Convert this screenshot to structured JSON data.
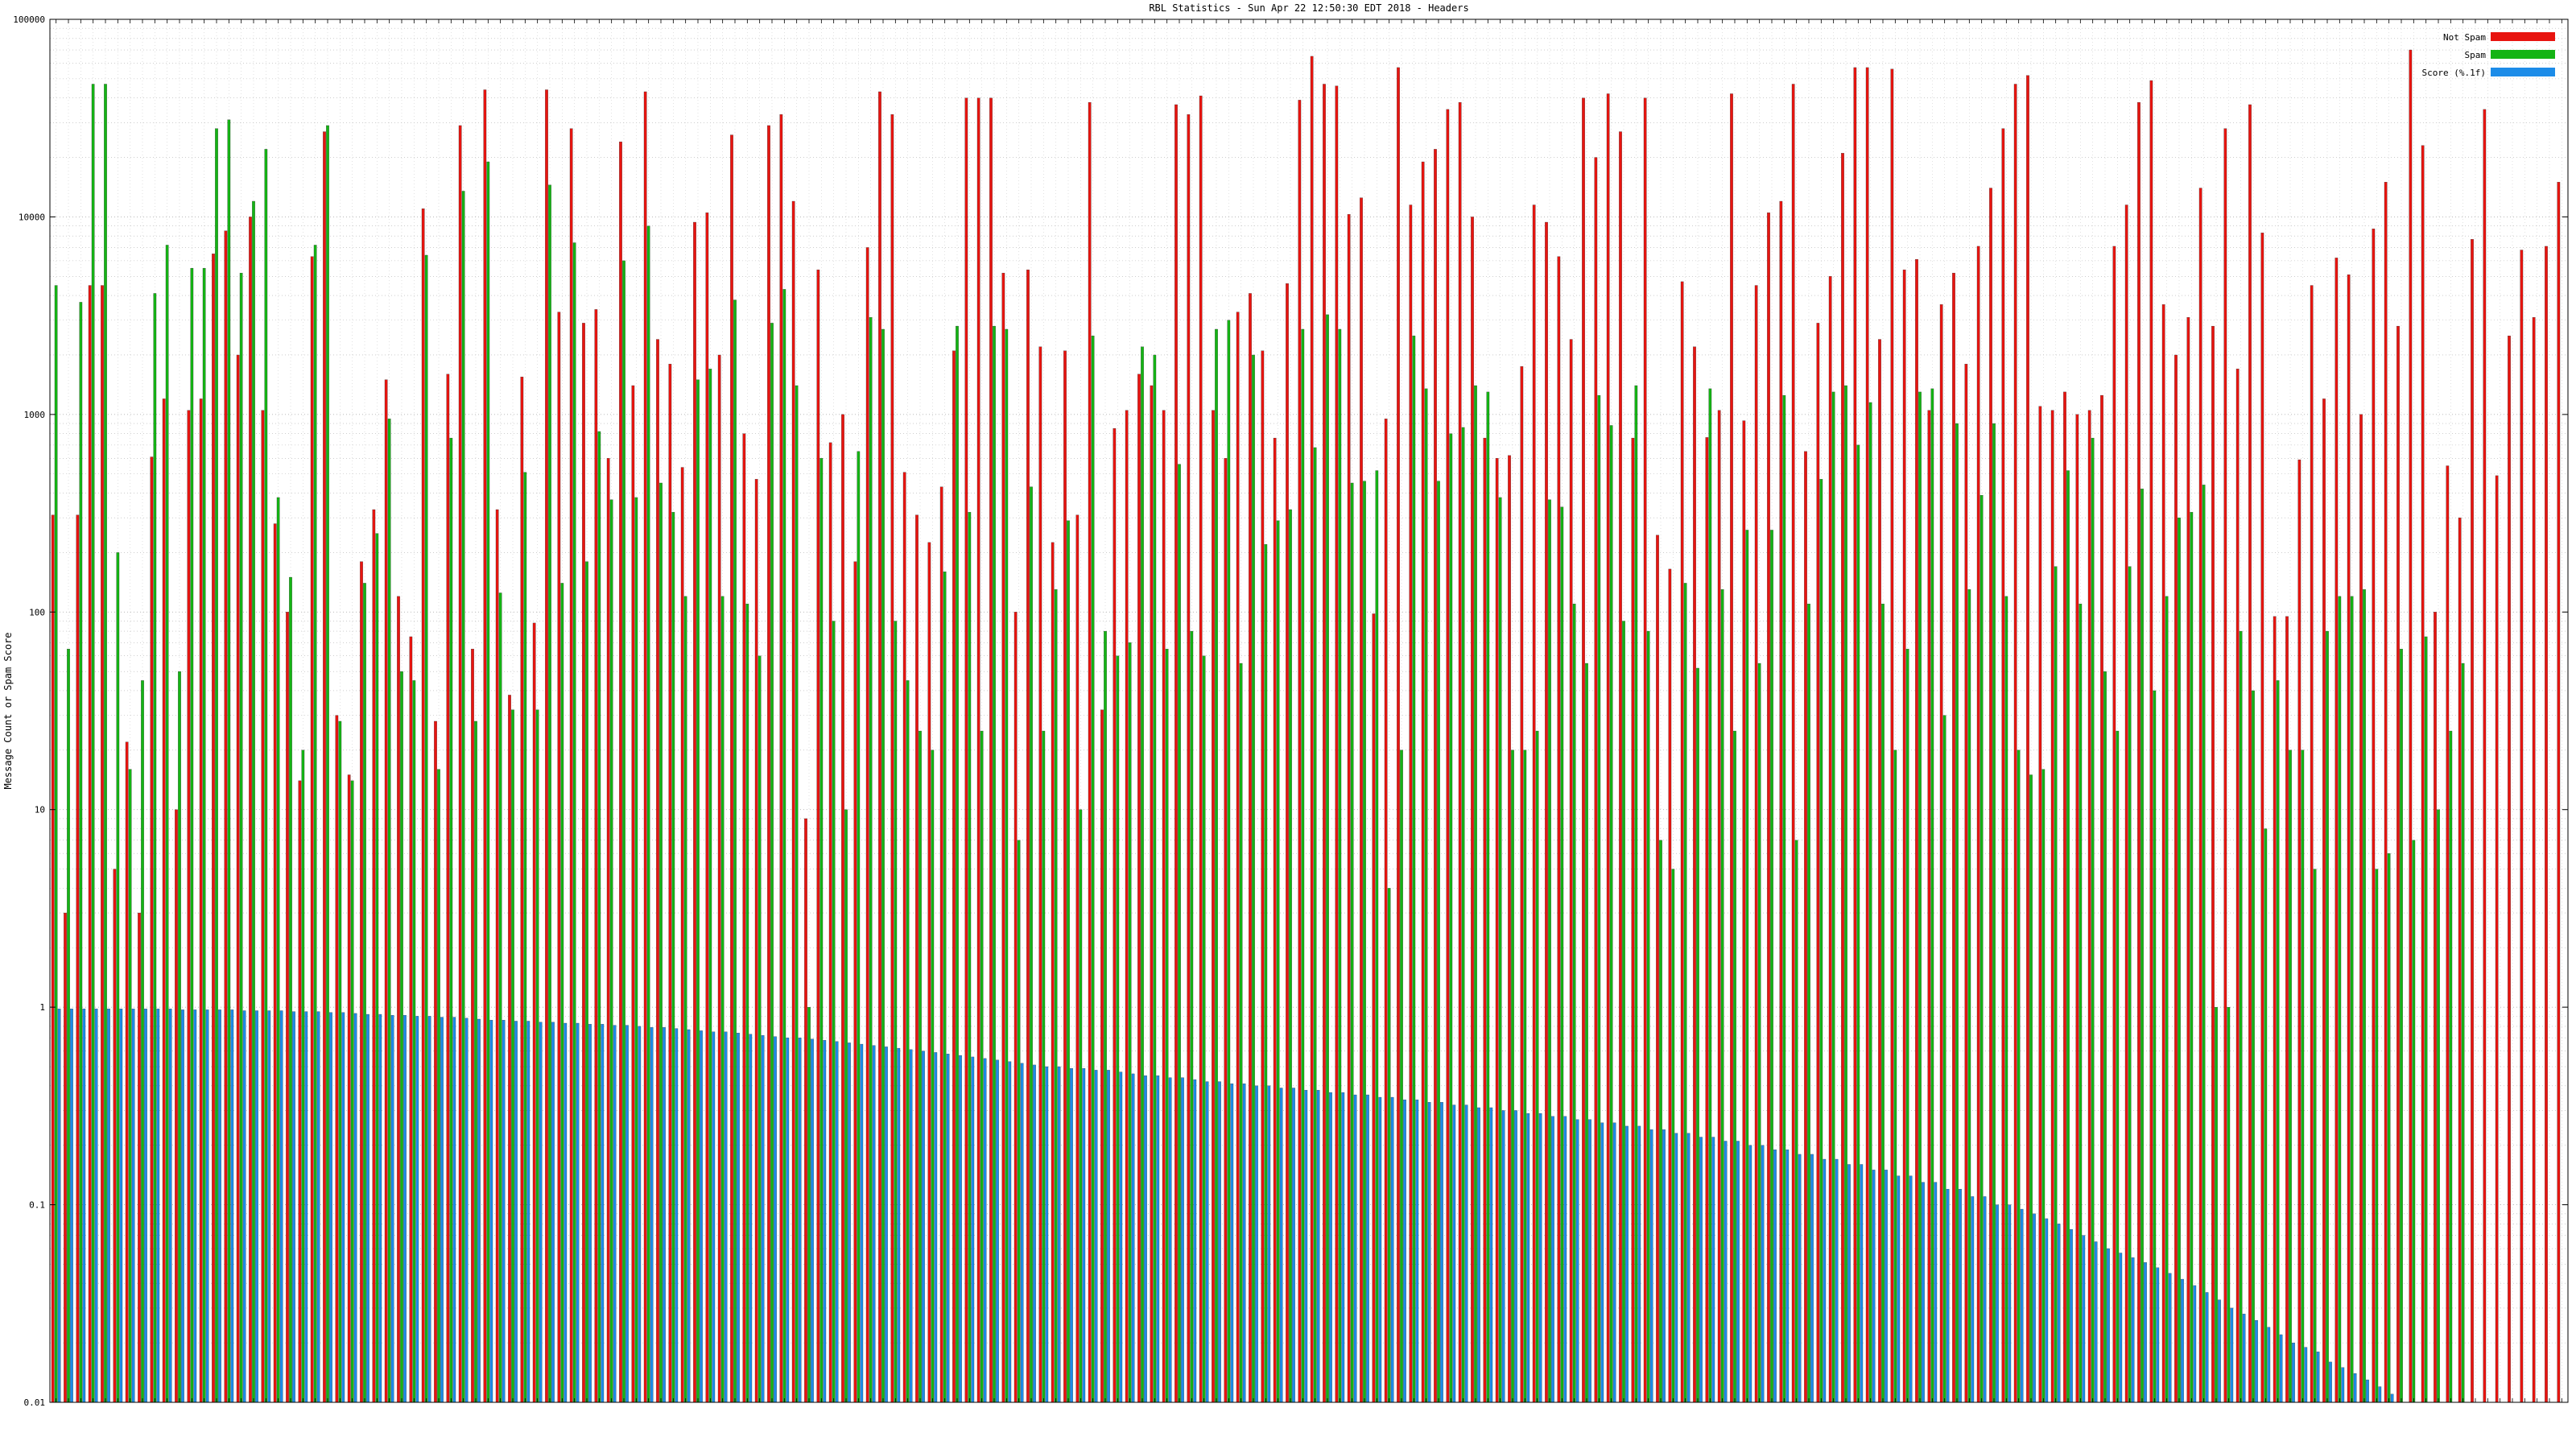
{
  "chart_data": {
    "type": "bar",
    "title": "RBL Statistics - Sun Apr 22 12:50:30 EDT 2018 - Headers",
    "xlabel": "",
    "ylabel": "Message Count or Spam Score",
    "yscale": "log",
    "ylim": [
      0.01,
      100000
    ],
    "y_ticks": [
      "0.01",
      "0.1",
      "1",
      "10",
      "100",
      "1000",
      "10000",
      "100000"
    ],
    "grid": true,
    "legend_position": "top-right",
    "colors": {
      "Not Spam": "#e8140f",
      "Spam": "#14b414",
      "Score (%.1f)": "#1c8ce8"
    },
    "series": [
      {
        "name": "Not Spam",
        "values": [
          310,
          3,
          310,
          4500,
          4500,
          5,
          22,
          3,
          610,
          1200,
          10,
          1050,
          1200,
          6500,
          8500,
          2000,
          10000,
          1050,
          280,
          100,
          14,
          6300,
          27000,
          30,
          15,
          180,
          330,
          1500,
          120,
          75,
          11000,
          28,
          1600,
          29000,
          65,
          44000,
          330,
          38,
          1550,
          88,
          44000,
          3300,
          28000,
          2900,
          3400,
          600,
          24000,
          1400,
          43000,
          2400,
          1800,
          540,
          9400,
          10500,
          2000,
          26000,
          800,
          470,
          29000,
          33000,
          12000,
          9,
          5400,
          720,
          1000,
          180,
          7000,
          43000,
          33000,
          510,
          310,
          225,
          430,
          2100,
          40000,
          40000,
          40000,
          5200,
          100,
          5400,
          2200,
          225,
          2100,
          310,
          38000,
          32,
          850,
          1050,
          1600,
          1400,
          1050,
          37000,
          33000,
          41000,
          1050,
          600,
          3300,
          4100,
          2100,
          760,
          4600,
          39000,
          65000,
          47000,
          46000,
          10300,
          12500,
          98,
          950,
          57000,
          11500,
          19000,
          22000,
          35000,
          38000,
          10000,
          760,
          600,
          620,
          1750,
          11500,
          9400,
          6300,
          2400,
          40000,
          20000,
          42000,
          27000,
          760,
          40000,
          245,
          165,
          4700,
          2200,
          765,
          1050,
          42000,
          930,
          4500,
          10500,
          12000,
          47000,
          650,
          2900,
          5000,
          21000,
          57000,
          57000,
          2400,
          56000,
          5400,
          6100,
          1050,
          3600,
          5200,
          1800,
          7100,
          14000,
          28000,
          47000,
          52000,
          1100,
          1050,
          1300,
          1000,
          1050,
          1250,
          7100,
          11500,
          38000,
          49000,
          3600,
          2000,
          3100,
          14000,
          2800,
          28000,
          1700,
          37000,
          8300,
          95,
          95,
          590,
          4500,
          1200,
          6200,
          5100,
          1000,
          8700,
          15000,
          2800,
          70000,
          23000,
          100,
          550,
          300,
          7700,
          35000,
          490,
          2500,
          6800,
          3100,
          7100,
          15000
        ]
      },
      {
        "name": "Spam",
        "values": [
          4500,
          65,
          3700,
          47000,
          47000,
          200,
          16,
          45,
          4100,
          7200,
          50,
          5500,
          5500,
          28000,
          31000,
          5200,
          12000,
          22000,
          380,
          150,
          20,
          7200,
          29000,
          28,
          14,
          140,
          250,
          950,
          50,
          45,
          6400,
          16,
          760,
          13500,
          28,
          19000,
          125,
          32,
          510,
          32,
          14500,
          140,
          7400,
          180,
          820,
          370,
          6000,
          380,
          9000,
          450,
          320,
          120,
          1500,
          1700,
          120,
          3800,
          110,
          60,
          2900,
          4300,
          1400,
          1,
          600,
          90,
          10,
          650,
          3100,
          2700,
          90,
          45,
          25,
          20,
          160,
          2800,
          320,
          25,
          2800,
          2700,
          7,
          430,
          25,
          130,
          290,
          10,
          2500,
          80,
          60,
          70,
          2200,
          2000,
          65,
          560,
          80,
          60,
          2700,
          3000,
          55,
          2000,
          220,
          290,
          330,
          2700,
          680,
          3200,
          2700,
          450,
          460,
          520,
          4,
          20,
          2500,
          1350,
          460,
          800,
          860,
          1400,
          1300,
          380,
          20,
          20,
          25,
          370,
          340,
          110,
          55,
          1250,
          880,
          90,
          1400,
          80,
          7,
          5,
          140,
          52,
          1350,
          130,
          25,
          260,
          55,
          260,
          1250,
          7,
          110,
          470,
          1300,
          1400,
          700,
          1150,
          110,
          20,
          65,
          1300,
          1350,
          30,
          900,
          130,
          390,
          900,
          120,
          20,
          15,
          16,
          170,
          520,
          110,
          760,
          50,
          25,
          170,
          420,
          40,
          120,
          300,
          320,
          440,
          1,
          1,
          80,
          40,
          8,
          45,
          20,
          20,
          5,
          80,
          120,
          120,
          130,
          5,
          6,
          65,
          7,
          75,
          10,
          25,
          55
        ]
      },
      {
        "name": "Score (%.1f)",
        "values": [
          0.98,
          0.98,
          0.98,
          0.98,
          0.98,
          0.98,
          0.98,
          0.98,
          0.98,
          0.98,
          0.97,
          0.97,
          0.97,
          0.97,
          0.97,
          0.96,
          0.96,
          0.96,
          0.96,
          0.95,
          0.95,
          0.95,
          0.94,
          0.94,
          0.93,
          0.92,
          0.92,
          0.91,
          0.91,
          0.9,
          0.9,
          0.89,
          0.89,
          0.88,
          0.87,
          0.86,
          0.86,
          0.85,
          0.85,
          0.84,
          0.84,
          0.83,
          0.83,
          0.82,
          0.82,
          0.81,
          0.81,
          0.8,
          0.79,
          0.79,
          0.78,
          0.77,
          0.76,
          0.75,
          0.75,
          0.74,
          0.73,
          0.72,
          0.71,
          0.7,
          0.7,
          0.69,
          0.68,
          0.67,
          0.66,
          0.65,
          0.64,
          0.63,
          0.62,
          0.61,
          0.6,
          0.59,
          0.58,
          0.57,
          0.56,
          0.55,
          0.54,
          0.53,
          0.52,
          0.51,
          0.5,
          0.5,
          0.49,
          0.49,
          0.48,
          0.48,
          0.47,
          0.46,
          0.45,
          0.45,
          0.44,
          0.44,
          0.43,
          0.42,
          0.42,
          0.41,
          0.41,
          0.4,
          0.4,
          0.39,
          0.39,
          0.38,
          0.38,
          0.37,
          0.37,
          0.36,
          0.36,
          0.35,
          0.35,
          0.34,
          0.34,
          0.33,
          0.33,
          0.32,
          0.32,
          0.31,
          0.31,
          0.3,
          0.3,
          0.29,
          0.29,
          0.28,
          0.28,
          0.27,
          0.27,
          0.26,
          0.26,
          0.25,
          0.25,
          0.24,
          0.24,
          0.23,
          0.23,
          0.22,
          0.22,
          0.21,
          0.21,
          0.2,
          0.2,
          0.19,
          0.19,
          0.18,
          0.18,
          0.17,
          0.17,
          0.16,
          0.16,
          0.15,
          0.15,
          0.14,
          0.14,
          0.13,
          0.13,
          0.12,
          0.12,
          0.11,
          0.11,
          0.1,
          0.1,
          0.095,
          0.09,
          0.085,
          0.08,
          0.075,
          0.07,
          0.065,
          0.06,
          0.057,
          0.054,
          0.051,
          0.048,
          0.045,
          0.042,
          0.039,
          0.036,
          0.033,
          0.03,
          0.028,
          0.026,
          0.024,
          0.022,
          0.02,
          0.019,
          0.018,
          0.016,
          0.015,
          0.014,
          0.013,
          0.012,
          0.011,
          0.01,
          0.01
        ]
      }
    ]
  }
}
